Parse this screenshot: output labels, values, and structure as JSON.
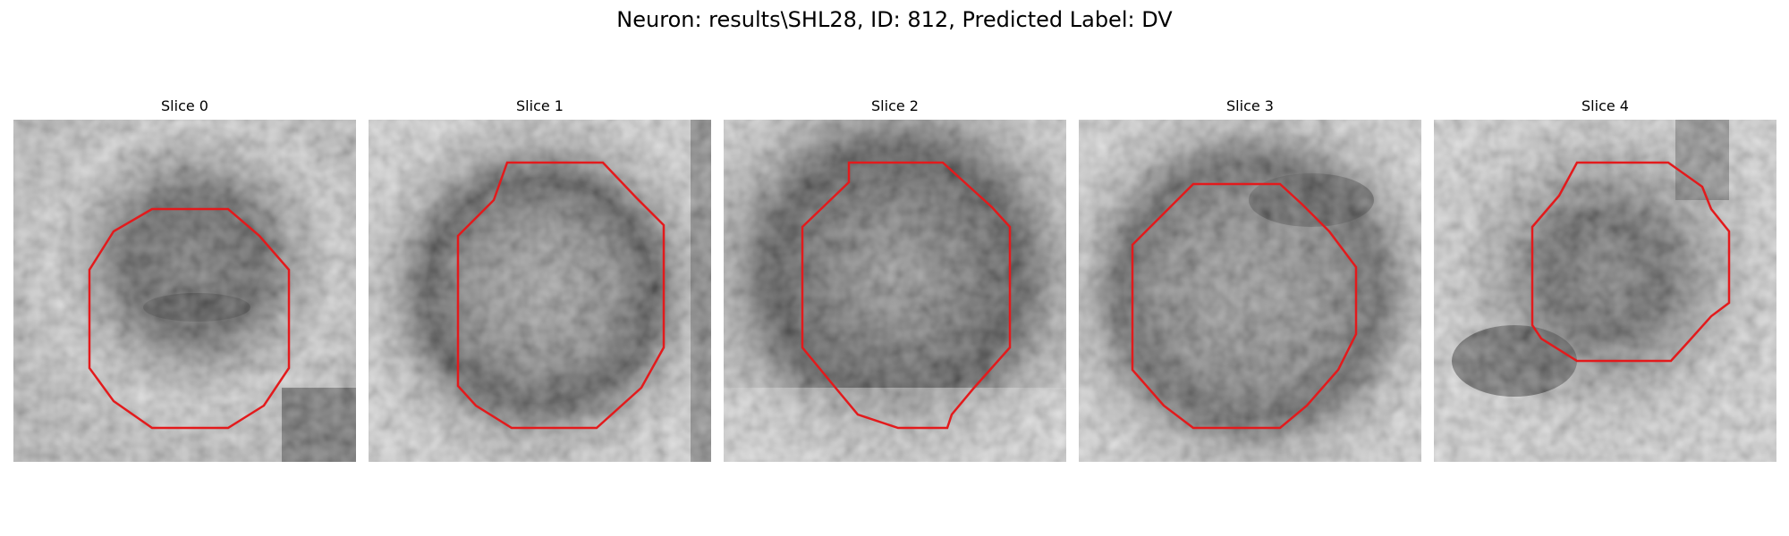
{
  "figure": {
    "title": "Neuron: results\\SHL28, ID: 812, Predicted Label: DV"
  },
  "panels": [
    {
      "title": "Slice 0"
    },
    {
      "title": "Slice 1"
    },
    {
      "title": "Slice 2"
    },
    {
      "title": "Slice 3"
    },
    {
      "title": "Slice 4"
    }
  ],
  "colors": {
    "outline": "#e31a1c",
    "background": "#ffffff"
  }
}
